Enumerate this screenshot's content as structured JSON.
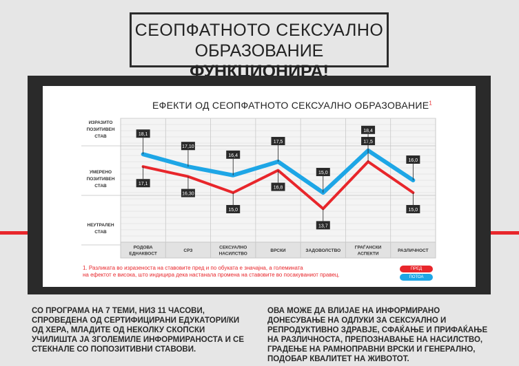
{
  "title": {
    "line1": "СЕОПФАТНОТО СЕКСУАЛНО",
    "line2_normal": "ОБРАЗОВАНИЕ ",
    "line2_bold": "ФУНКЦИОНИРА!"
  },
  "chart_title": "ЕФЕКТИ ОД СЕОПФАТНОТО СЕКСУАЛНО ОБРАЗОВАНИЕ",
  "chart_title_sup": "1",
  "note_line1": "1. Разликата во изразеноста на ставовите пред и по обуката е значајна, а големината",
  "note_line2": "на ефектот е висока, што индицира дека настанала промена на ставовите во посакуваниот правец.",
  "footer_left": "СО ПРОГРАМА НА 7 ТЕМИ, НИЗ 11 ЧАСОВИ, СПРОВЕДЕНА ОД СЕРТИФИЦИРАНИ ЕДУКАТОРИ/КИ ОД ХЕРА, МЛАДИТЕ ОД НЕКОЛКУ СКОПСКИ УЧИЛИШТА ЈА ЗГОЛЕМИЛЕ ИНФОРМИРАНОСТА И СЕ СТЕКНАЛЕ СО ПОПОЗИТИВНИ СТАВОВИ.",
  "footer_right": "ОВА МОЖЕ ДА ВЛИЈАЕ НА ИНФОРМИРАНО ДОНЕСУВАЊЕ НА ОДЛУКИ ЗА СЕКСУАЛНО И РЕПРОДУКТИВНО ЗДРАВЈЕ, СФАЌАЊЕ И ПРИФАЌАЊЕ НА РАЗЛИЧНОСТА, ПРЕПОЗНАВАЊЕ НА НАСИЛСТВО, ГРАДЕЊЕ НА РАМНОПРАВНИ ВРСКИ И ГЕНЕРАЛНО, ПОДОБАР КВАЛИТЕТ НА ЖИВОТОТ.",
  "colors": {
    "before": "#e8262b",
    "after": "#1ea6e6",
    "accent": "#e8262b"
  },
  "chart_data": {
    "type": "line",
    "categories": [
      [
        "РОДОВА",
        "ЕДНАКВОСТ"
      ],
      [
        "СРЗ"
      ],
      [
        "СЕКСУАЛНО",
        "НАСИЛСТВО"
      ],
      [
        "ВРСКИ"
      ],
      [
        "ЗАДОВОЛСТВО"
      ],
      [
        "ГРАЃАНСКИ",
        "АСПЕКТИ"
      ],
      [
        "РАЗЛИЧНОСТ"
      ]
    ],
    "y_levels": [
      {
        "label": [
          "ИЗРАЗИТО",
          "ПОЗИТИВЕН",
          "СТАВ"
        ],
        "value": 20
      },
      {
        "label": [
          "УМЕРЕНО",
          "ПОЗИТИВЕН",
          "СТАВ"
        ],
        "value": 16
      },
      {
        "label": [
          "НЕУТРАЛЕН",
          "СТАВ"
        ],
        "value": 12
      }
    ],
    "ylim": [
      11,
      21
    ],
    "series": [
      {
        "name": "ПРЕД",
        "key": "before",
        "values": [
          17.1,
          16.3,
          15.0,
          16.8,
          13.7,
          17.5,
          15.0
        ],
        "labels": [
          "17,1",
          "16,30",
          "15,0",
          "16,8",
          "13,7",
          "17,5",
          "15,0"
        ],
        "label_pos": [
          "below",
          "below",
          "below",
          "below",
          "below",
          "above",
          "below"
        ]
      },
      {
        "name": "ПОТОА",
        "key": "after",
        "values": [
          18.1,
          17.1,
          16.4,
          17.5,
          15.0,
          18.4,
          16.0
        ],
        "labels": [
          "18,1",
          "17,10",
          "16,4",
          "17,5",
          "15,0",
          "18,4",
          "16,0"
        ],
        "label_pos": [
          "above",
          "above",
          "above",
          "above",
          "above",
          "above",
          "above"
        ]
      }
    ]
  }
}
